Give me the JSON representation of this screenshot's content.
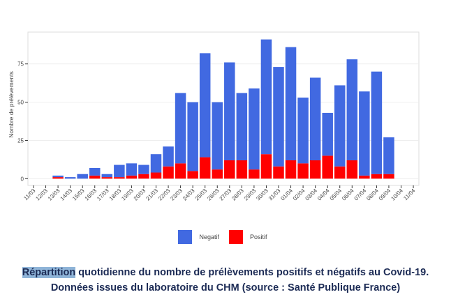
{
  "chart_data": {
    "type": "bar",
    "stacked": true,
    "ylabel": "Nombre de prélèvements",
    "xlabel": "",
    "ylim": [
      0,
      96
    ],
    "yticks": [
      0,
      25,
      50,
      75
    ],
    "grid": true,
    "legend_position": "bottom",
    "categories": [
      "11/03",
      "12/03",
      "13/03",
      "14/03",
      "15/03",
      "16/03",
      "17/03",
      "18/03",
      "19/03",
      "20/03",
      "21/03",
      "22/03",
      "23/03",
      "24/03",
      "25/03",
      "26/03",
      "27/03",
      "28/03",
      "29/03",
      "30/03",
      "31/03",
      "01/04",
      "02/04",
      "03/04",
      "04/04",
      "05/04",
      "06/04",
      "07/04",
      "08/04",
      "09/04",
      "10/04",
      "11/04"
    ],
    "series": [
      {
        "name": "Negatif",
        "color": "#4169e1",
        "values": [
          0,
          0,
          1,
          1,
          3,
          5,
          2,
          8,
          8,
          6,
          12,
          13,
          46,
          45,
          68,
          44,
          64,
          44,
          53,
          75,
          65,
          74,
          43,
          54,
          28,
          53,
          66,
          55,
          67,
          24,
          0,
          0
        ]
      },
      {
        "name": "Positif",
        "color": "#ff0000",
        "values": [
          0,
          0,
          1,
          0,
          0,
          2,
          1,
          1,
          2,
          3,
          4,
          8,
          10,
          5,
          14,
          6,
          12,
          12,
          6,
          16,
          8,
          12,
          10,
          12,
          15,
          8,
          12,
          2,
          3,
          3,
          0,
          0
        ]
      }
    ]
  },
  "legend": {
    "negatif": "Negatif",
    "positif": "Positif"
  },
  "caption": {
    "highlight": "Répartition",
    "line1_rest": " quotidienne du nombre de prélèvements positifs et négatifs au Covid-19.",
    "line2": "Données issues du laboratoire du CHM (source : Santé Publique France)"
  }
}
